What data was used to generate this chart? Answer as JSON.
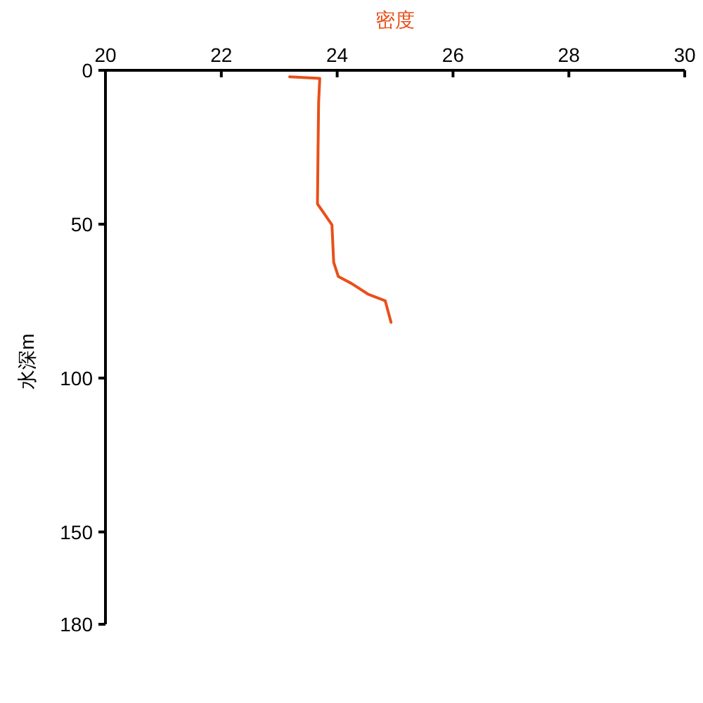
{
  "chart_data": {
    "type": "line",
    "xlabel": "密度",
    "ylabel": "水深m",
    "xlim": [
      20,
      30
    ],
    "xticks": [
      20,
      22,
      24,
      26,
      28,
      30
    ],
    "ylim": [
      180,
      0
    ],
    "yticks": [
      0,
      50,
      100,
      150,
      180
    ],
    "grid": false,
    "series": [
      {
        "color": "#e8501a",
        "x": [
          23.18,
          23.7,
          23.68,
          23.67,
          23.66,
          23.8,
          23.91,
          23.94,
          24.02,
          24.25,
          24.53,
          24.83,
          24.93
        ],
        "values": [
          2.1,
          2.6,
          10.5,
          25.9,
          43.4,
          47.2,
          50.2,
          62.4,
          67.0,
          69.3,
          72.7,
          74.9,
          81.9
        ]
      }
    ]
  }
}
